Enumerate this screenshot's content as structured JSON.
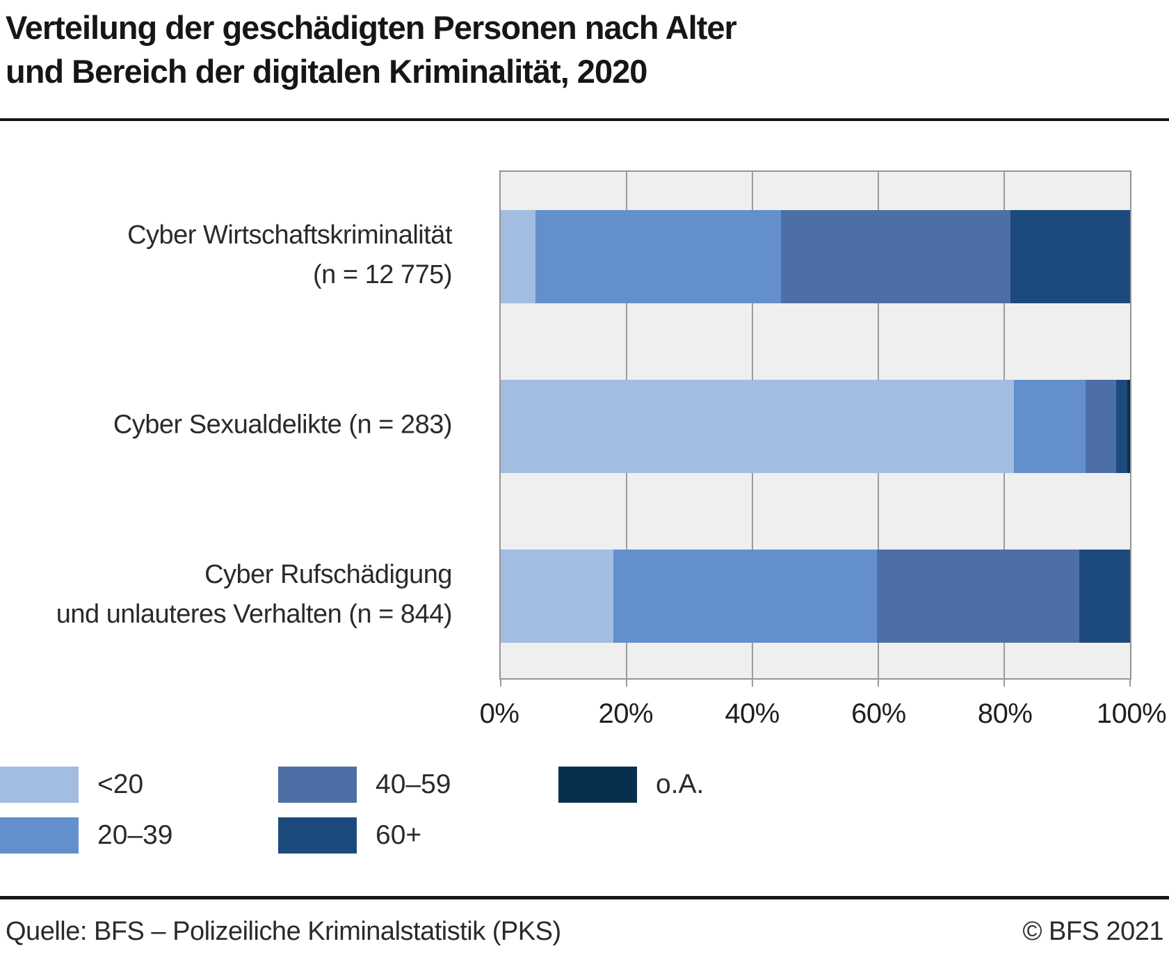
{
  "title": {
    "line1": "Verteilung der geschädigten Personen nach Alter",
    "line2": "und Bereich der digitalen Kriminalität, 2020"
  },
  "footer": {
    "source": "Quelle: BFS – Polizeiliche Kriminalstatistik (PKS)",
    "copyright": "© BFS 2021"
  },
  "colors": {
    "age_lt_20": "#a2bce2",
    "age_20_39": "#6390cc",
    "age_40_59": "#4d6fa6",
    "age_60_plus": "#1d4a7d",
    "age_unknown": "#06304e",
    "plot_background": "#efefef",
    "grid": "#9b9b9b",
    "text": "#2a2a2a"
  },
  "chart_data": {
    "type": "bar",
    "orientation": "horizontal",
    "stacked": true,
    "title": "Verteilung der geschädigten Personen nach Alter und Bereich der digitalen Kriminalität, 2020",
    "categories": [
      "Cyber Wirtschaftskriminalität (n = 12 775)",
      "Cyber Sexualdelikte (n = 283)",
      "Cyber Rufschädigung und unlauteres Verhalten (n = 844)"
    ],
    "category_label_lines": [
      [
        "Cyber Wirtschaftskriminalität",
        "(n = 12 775)"
      ],
      [
        "Cyber Sexualdelikte (n = 283)"
      ],
      [
        "Cyber Rufschädigung",
        "und unlauteres Verhalten (n = 844)"
      ]
    ],
    "series": [
      {
        "name": "<20",
        "color": "#a2bce2",
        "values": [
          5.5,
          81.6,
          17.9
        ]
      },
      {
        "name": "20–39",
        "color": "#6390cc",
        "values": [
          39.0,
          11.3,
          41.9
        ]
      },
      {
        "name": "40–59",
        "color": "#4d6fa6",
        "values": [
          36.5,
          4.9,
          32.1
        ]
      },
      {
        "name": "60+",
        "color": "#1d4a7d",
        "values": [
          19.0,
          1.8,
          8.1
        ]
      },
      {
        "name": "o.A.",
        "color": "#06304e",
        "values": [
          0.0,
          0.4,
          0.0
        ]
      }
    ],
    "xlabel": "",
    "ylabel": "",
    "xlim": [
      0,
      100
    ],
    "x_ticks": [
      "0%",
      "20%",
      "40%",
      "60%",
      "80%",
      "100%"
    ],
    "grid": true,
    "legend_position": "bottom"
  }
}
